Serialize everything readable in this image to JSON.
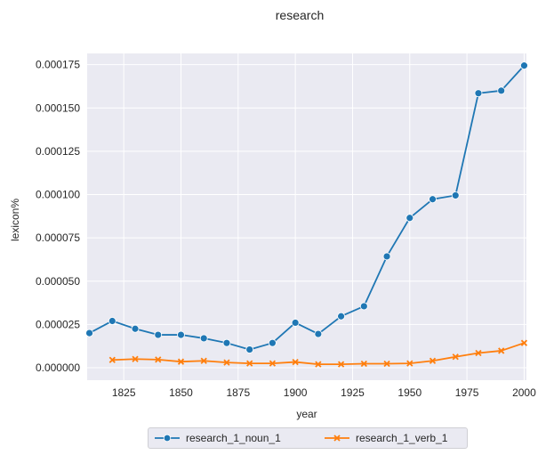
{
  "chart_data": {
    "type": "line",
    "title": "research",
    "xlabel": "year",
    "ylabel": "lexicon%",
    "xlim": [
      1809,
      2001
    ],
    "ylim": [
      -7.2e-06,
      0.0001815
    ],
    "x_ticks": [
      1825,
      1850,
      1875,
      1900,
      1925,
      1950,
      1975,
      2000
    ],
    "x_tick_labels": [
      "1825",
      "1850",
      "1875",
      "1900",
      "1925",
      "1950",
      "1975",
      "2000"
    ],
    "y_ticks": [
      0.0,
      2.5e-05,
      5e-05,
      7.5e-05,
      0.0001,
      0.000125,
      0.00015,
      0.000175
    ],
    "y_tick_labels": [
      "0.000000",
      "0.000025",
      "0.000050",
      "0.000075",
      "0.000100",
      "0.000125",
      "0.000150",
      "0.000175"
    ],
    "grid": true,
    "legend_position": "bottom-center",
    "series": [
      {
        "name": "research_1_noun_1",
        "color": "#1f77b4",
        "marker": "circle",
        "x": [
          1810,
          1820,
          1830,
          1840,
          1850,
          1860,
          1870,
          1880,
          1890,
          1900,
          1910,
          1920,
          1930,
          1940,
          1950,
          1960,
          1970,
          1980,
          1990,
          2000
        ],
        "y": [
          2e-05,
          2.7e-05,
          2.25e-05,
          1.9e-05,
          1.9e-05,
          1.7e-05,
          1.43e-05,
          1.05e-05,
          1.43e-05,
          2.6e-05,
          1.95e-05,
          2.97e-05,
          3.55e-05,
          6.43e-05,
          8.65e-05,
          9.73e-05,
          9.95e-05,
          0.0001585,
          0.00016,
          0.0001745
        ]
      },
      {
        "name": "research_1_verb_1",
        "color": "#ff7f0e",
        "marker": "x",
        "x": [
          1820,
          1830,
          1840,
          1850,
          1860,
          1870,
          1880,
          1890,
          1900,
          1910,
          1920,
          1930,
          1940,
          1950,
          1960,
          1970,
          1980,
          1990,
          2000
        ],
        "y": [
          4.5e-06,
          5e-06,
          4.7e-06,
          3.5e-06,
          4e-06,
          3e-06,
          2.5e-06,
          2.5e-06,
          3.3e-06,
          2e-06,
          2e-06,
          2.3e-06,
          2.3e-06,
          2.5e-06,
          4e-06,
          6.3e-06,
          8.5e-06,
          9.8e-06,
          1.43e-05
        ]
      }
    ]
  }
}
